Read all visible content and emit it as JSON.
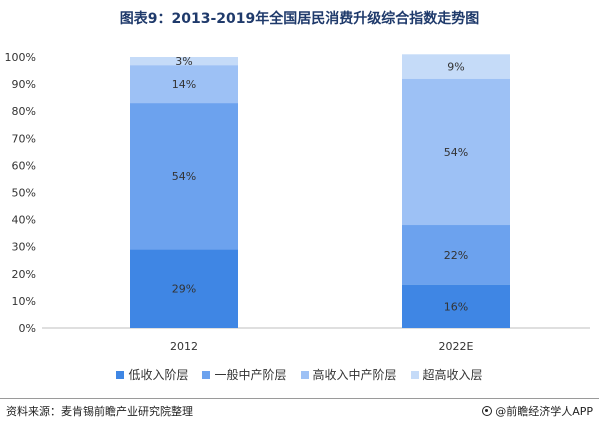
{
  "title": "图表9：2013-2019年全国居民消费升级综合指数走势图",
  "source": "资料来源：麦肯锡前瞻产业研究院整理",
  "brand": "@前瞻经济学人APP",
  "chart_data": {
    "type": "bar",
    "stacked": true,
    "categories": [
      "2012",
      "2022E"
    ],
    "ylim": [
      0,
      100
    ],
    "yticks": [
      "0%",
      "10%",
      "20%",
      "30%",
      "40%",
      "50%",
      "60%",
      "70%",
      "80%",
      "90%",
      "100%"
    ],
    "grid": false,
    "legend_position": "bottom",
    "series": [
      {
        "name": "低收入阶层",
        "values": [
          29,
          16
        ],
        "labels": [
          "29%",
          "16%"
        ],
        "color": "#3f86e4"
      },
      {
        "name": "一般中产阶层",
        "values": [
          54,
          22
        ],
        "labels": [
          "54%",
          "22%"
        ],
        "color": "#6ca2ee"
      },
      {
        "name": "高收入中产阶层",
        "values": [
          14,
          54
        ],
        "labels": [
          "14%",
          "54%"
        ],
        "color": "#9dc1f5"
      },
      {
        "name": "超高收入层",
        "values": [
          3,
          9
        ],
        "labels": [
          "3%",
          "9%"
        ],
        "color": "#c5dbf8"
      }
    ]
  }
}
